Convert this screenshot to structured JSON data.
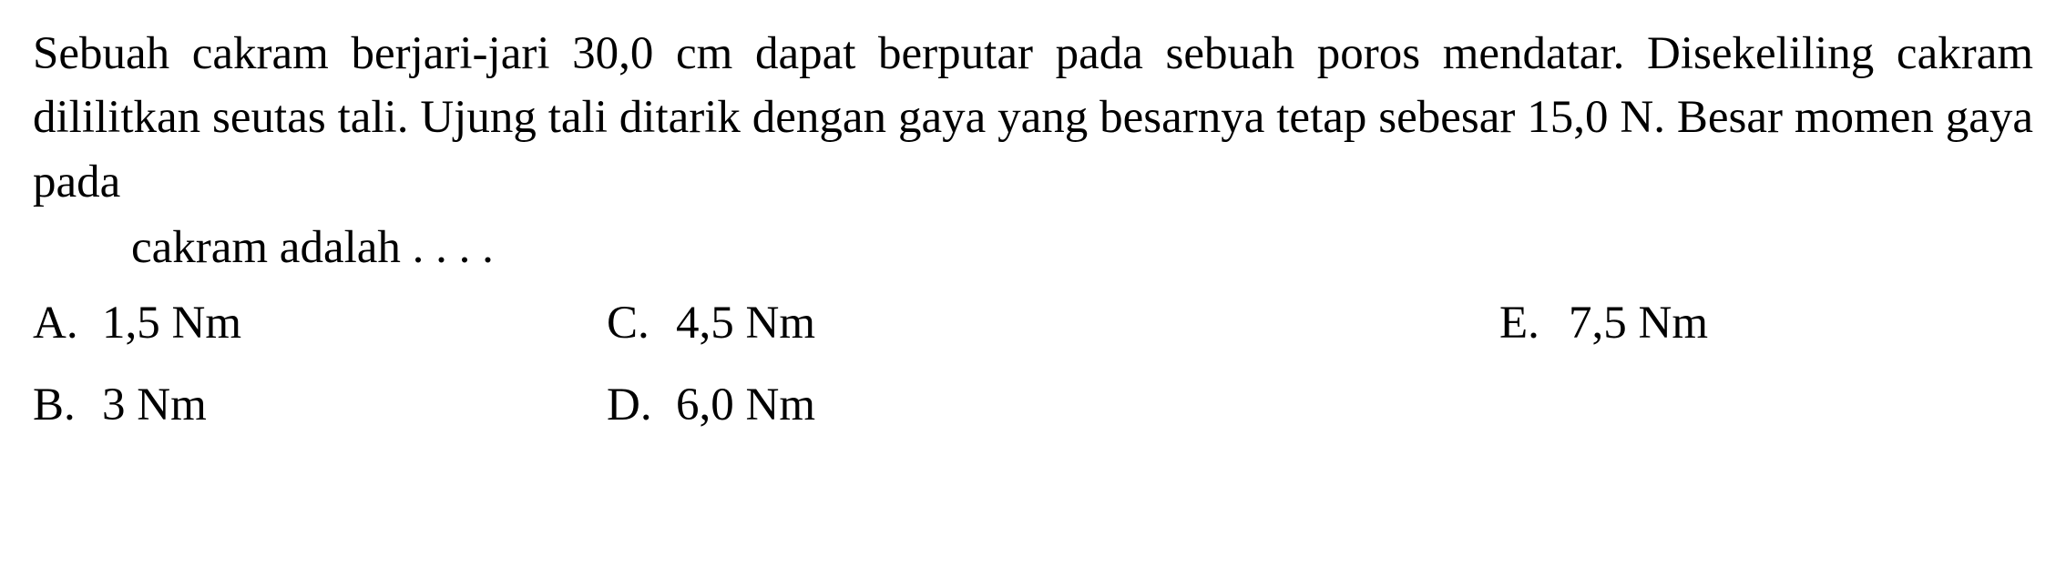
{
  "question": {
    "main_text": "Sebuah cakram berjari-jari 30,0 cm dapat berputar pada sebuah poros mendatar. Disekeliling cakram dililitkan seutas tali. Ujung tali ditarik dengan gaya yang besarnya tetap sebesar 15,0 N. Besar momen gaya pada",
    "tail_text": "cakram adalah . . . ."
  },
  "options": {
    "a": {
      "letter": "A.",
      "value": "1,5 Nm"
    },
    "b": {
      "letter": "B.",
      "value": "3 Nm"
    },
    "c": {
      "letter": "C.",
      "value": "4,5 Nm"
    },
    "d": {
      "letter": "D.",
      "value": "6,0 Nm"
    },
    "e": {
      "letter": "E.",
      "value": "7,5 Nm"
    }
  }
}
